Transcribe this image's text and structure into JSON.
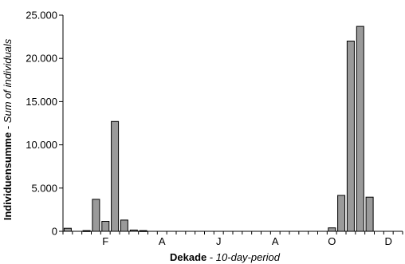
{
  "chart_data": {
    "type": "bar",
    "title": "",
    "xlabel": {
      "main": "Dekade",
      "sep": " - ",
      "sub": "10-day-period"
    },
    "ylabel": {
      "main": "Individuensumme",
      "sep": " - ",
      "sub": "Sum of individuals"
    },
    "ylim": [
      0,
      25000
    ],
    "yticks": [
      0,
      5000,
      10000,
      15000,
      20000,
      25000
    ],
    "ytick_labels": [
      "0",
      "5.000",
      "10.000",
      "15.000",
      "20.000",
      "25.000"
    ],
    "xticks": [
      {
        "label": "F",
        "decade": 5
      },
      {
        "label": "A",
        "decade": 11
      },
      {
        "label": "J",
        "decade": 17
      },
      {
        "label": "A",
        "decade": 23
      },
      {
        "label": "O",
        "decade": 29
      },
      {
        "label": "D",
        "decade": 35
      }
    ],
    "n_decades": 36,
    "values": [
      350,
      0,
      80,
      3700,
      1150,
      12700,
      1300,
      150,
      80,
      0,
      0,
      0,
      0,
      0,
      0,
      0,
      0,
      0,
      0,
      0,
      0,
      0,
      0,
      0,
      0,
      0,
      0,
      0,
      400,
      4150,
      22000,
      23700,
      3950,
      0,
      0,
      0
    ],
    "grid": false,
    "legend": "none"
  }
}
